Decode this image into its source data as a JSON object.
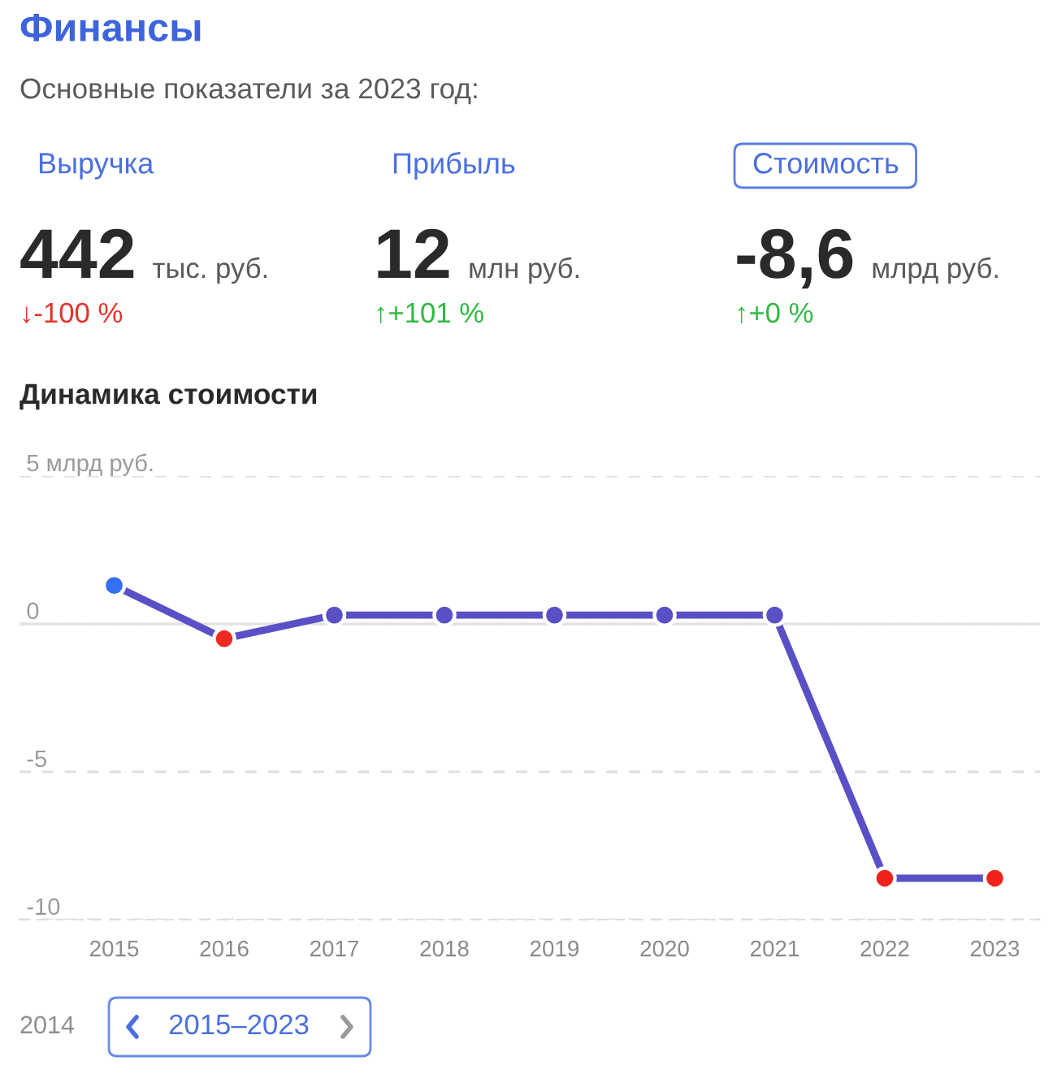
{
  "chart_data": [
    {
      "type": "other",
      "title": "Финансы",
      "subtitle": "Основные показатели за 2023 год:",
      "annotations": [
        "Выручка",
        "Прибыль",
        "Стоимость",
        "442",
        "тыс. руб.",
        "12",
        "млн руб.",
        "-8,6",
        "млрд руб.",
        "↓-100 %",
        "↑+101 %",
        "↑+0 %"
      ]
    },
    {
      "type": "line",
      "title": "Динамика стоимости",
      "categories": [
        "2015",
        "2016",
        "2017",
        "2018",
        "2019",
        "2020",
        "2021",
        "2022",
        "2023"
      ],
      "values": [
        1.3,
        -0.5,
        0.3,
        0.3,
        0.3,
        0.3,
        0.3,
        -8.6,
        -8.6
      ],
      "color": "#5a50c6",
      "colors": [
        "#3470f0",
        "#ef2a22",
        "#5a50c6",
        "#5a50c6",
        "#5a50c6",
        "#5a50c6",
        "#5a50c6",
        "#f0221b",
        "#f0221b"
      ],
      "ylim": [
        -10,
        5
      ],
      "yticks": [
        {
          "value": 5,
          "label": "5 млрд руб."
        },
        0,
        -5,
        -10
      ],
      "grid": "y",
      "marker": "circle",
      "line_style": "solid",
      "ref_lines": [
        {
          "axis": "y",
          "value": 0,
          "color": "#e2e2e2",
          "line_style": "solid"
        }
      ],
      "annotations": [
        "2014",
        "2015–2023"
      ]
    }
  ]
}
